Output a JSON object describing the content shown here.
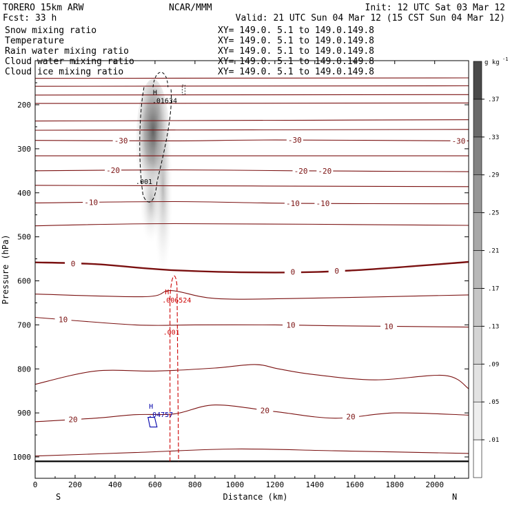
{
  "header": {
    "model": "TORERO  15km ARW",
    "center": "NCAR/MMM",
    "init": "Init: 12 UTC Sat 03 Mar 12",
    "fcst": "Fcst:   33 h",
    "valid": "Valid: 21 UTC Sun 04 Mar 12 (15 CST Sun 04 Mar 12)"
  },
  "fields": [
    {
      "name": "Snow mixing ratio",
      "xy": "XY= 149.0.  5.1 to 149.0.149.8",
      "color": "#000000"
    },
    {
      "name": "Temperature",
      "xy": "XY= 149.0.  5.1 to 149.0.149.8",
      "color": "#cc0000"
    },
    {
      "name": "Rain water mixing ratio",
      "xy": "XY= 149.0.  5.1 to 149.0.149.8",
      "color": "#cc0000"
    },
    {
      "name": "Cloud water mixing ratio",
      "xy": "XY= 149.0.  5.1 to 149.0.149.8",
      "color": "#0000aa"
    },
    {
      "name": "Cloud ice mixing ratio",
      "xy": "XY= 149.0.  5.1 to 149.0.149.8",
      "color": "#000000"
    }
  ],
  "colorbar": {
    "unit": "g kg",
    "unit_exp": "-1",
    "ticks": [
      ".01",
      ".05",
      ".09",
      ".13",
      ".17",
      ".21",
      ".25",
      ".29",
      ".33",
      ".37"
    ],
    "fill_values": [
      0.01,
      0.05,
      0.09,
      0.13,
      0.17,
      0.21,
      0.25,
      0.29,
      0.33,
      0.37,
      0.41
    ],
    "colors": [
      "#ffffff",
      "#eeeeee",
      "#e2e2e2",
      "#d4d4d4",
      "#c6c6c6",
      "#b8b8b8",
      "#a8a8a8",
      "#969696",
      "#828282",
      "#6a6a6a",
      "#4a4a4a"
    ]
  },
  "chart_data": {
    "type": "cross-section",
    "xlabel": "Distance (km)",
    "ylabel": "Pressure (hPa)",
    "xlim": [
      0,
      2170
    ],
    "ylim": [
      1050,
      100
    ],
    "x_ticks": [
      0,
      200,
      400,
      600,
      800,
      1000,
      1200,
      1400,
      1600,
      1800,
      2000
    ],
    "y_ticks": [
      200,
      300,
      400,
      500,
      600,
      700,
      800,
      900,
      1000
    ],
    "end_labels": {
      "left": "S",
      "right": "N"
    },
    "surface_pressure": 1010,
    "temperature_contours": [
      {
        "value": -60,
        "p": [
          [
            0,
            140
          ],
          [
            2170,
            139
          ]
        ]
      },
      {
        "value": -55,
        "p": [
          [
            0,
            158
          ],
          [
            2170,
            157
          ]
        ]
      },
      {
        "value": -50,
        "p": [
          [
            0,
            178
          ],
          [
            2170,
            177
          ]
        ]
      },
      {
        "value": -45,
        "p": [
          [
            0,
            197
          ],
          [
            2170,
            196
          ]
        ]
      },
      {
        "value": -40,
        "p": [
          [
            0,
            237
          ],
          [
            700,
            236
          ],
          [
            2170,
            234
          ]
        ]
      },
      {
        "value": -35,
        "p": [
          [
            0,
            258
          ],
          [
            2170,
            256
          ]
        ]
      },
      {
        "value": -30,
        "p": [
          [
            0,
            281
          ],
          [
            700,
            282
          ],
          [
            1200,
            280
          ],
          [
            2170,
            282
          ]
        ],
        "label": "-30",
        "label_x": [
          430,
          1300,
          2120
        ]
      },
      {
        "value": -25,
        "p": [
          [
            0,
            316
          ],
          [
            2170,
            316
          ]
        ]
      },
      {
        "value": -20,
        "p": [
          [
            0,
            350
          ],
          [
            700,
            348
          ],
          [
            1300,
            350
          ],
          [
            2170,
            352
          ]
        ],
        "label": "-20",
        "label_x": [
          390,
          1330,
          1450
        ]
      },
      {
        "value": -15,
        "p": [
          [
            0,
            383
          ],
          [
            2170,
            386
          ]
        ]
      },
      {
        "value": -10,
        "p": [
          [
            0,
            423
          ],
          [
            700,
            420
          ],
          [
            1300,
            424
          ],
          [
            2170,
            425
          ]
        ],
        "label": "-10",
        "label_x": [
          280,
          1290,
          1440
        ]
      },
      {
        "value": -5,
        "p": [
          [
            0,
            475
          ],
          [
            700,
            470
          ],
          [
            2170,
            474
          ]
        ]
      },
      {
        "value": 0,
        "p": [
          [
            0,
            558
          ],
          [
            300,
            562
          ],
          [
            700,
            576
          ],
          [
            1200,
            581
          ],
          [
            1600,
            576
          ],
          [
            2170,
            557
          ]
        ],
        "label": "0",
        "label_x": [
          190,
          1290,
          1510
        ]
      },
      {
        "value": 5,
        "p": [
          [
            0,
            630
          ],
          [
            550,
            636
          ],
          [
            680,
            622
          ],
          [
            900,
            640
          ],
          [
            1300,
            640
          ],
          [
            2170,
            632
          ]
        ]
      },
      {
        "value": 10,
        "p": [
          [
            0,
            683
          ],
          [
            500,
            700
          ],
          [
            800,
            700
          ],
          [
            1200,
            700
          ],
          [
            1500,
            702
          ],
          [
            2170,
            705
          ]
        ],
        "label": "10",
        "label_x": [
          140,
          1280,
          1770
        ]
      },
      {
        "value": 15,
        "p": [
          [
            0,
            835
          ],
          [
            300,
            805
          ],
          [
            600,
            805
          ],
          [
            900,
            798
          ],
          [
            1100,
            790
          ],
          [
            1220,
            800
          ],
          [
            1380,
            812
          ],
          [
            1700,
            825
          ],
          [
            2050,
            815
          ],
          [
            2170,
            845
          ]
        ]
      },
      {
        "value": 20,
        "p": [
          [
            0,
            920
          ],
          [
            300,
            912
          ],
          [
            500,
            904
          ],
          [
            700,
            902
          ],
          [
            900,
            882
          ],
          [
            1200,
            897
          ],
          [
            1500,
            912
          ],
          [
            1800,
            900
          ],
          [
            2170,
            905
          ]
        ],
        "label": "20",
        "label_x": [
          190,
          1150,
          1580
        ]
      },
      {
        "value": 25,
        "p": [
          [
            0,
            998
          ],
          [
            500,
            990
          ],
          [
            1000,
            982
          ],
          [
            1500,
            986
          ],
          [
            2170,
            992
          ]
        ]
      }
    ],
    "snow_maximum": {
      "label": "H",
      "value": ".01634",
      "x": 600,
      "p": 188
    },
    "cloud_ice_contour": {
      "label": ".001"
    },
    "rain_maximum": {
      "label": "H",
      "value": ".006524",
      "x": 660,
      "p": 640
    },
    "rain_contour": {
      "label": ".001"
    },
    "cloud_water_maximum": {
      "label": "H",
      "value": ".04757",
      "x": 580,
      "p": 900
    }
  }
}
